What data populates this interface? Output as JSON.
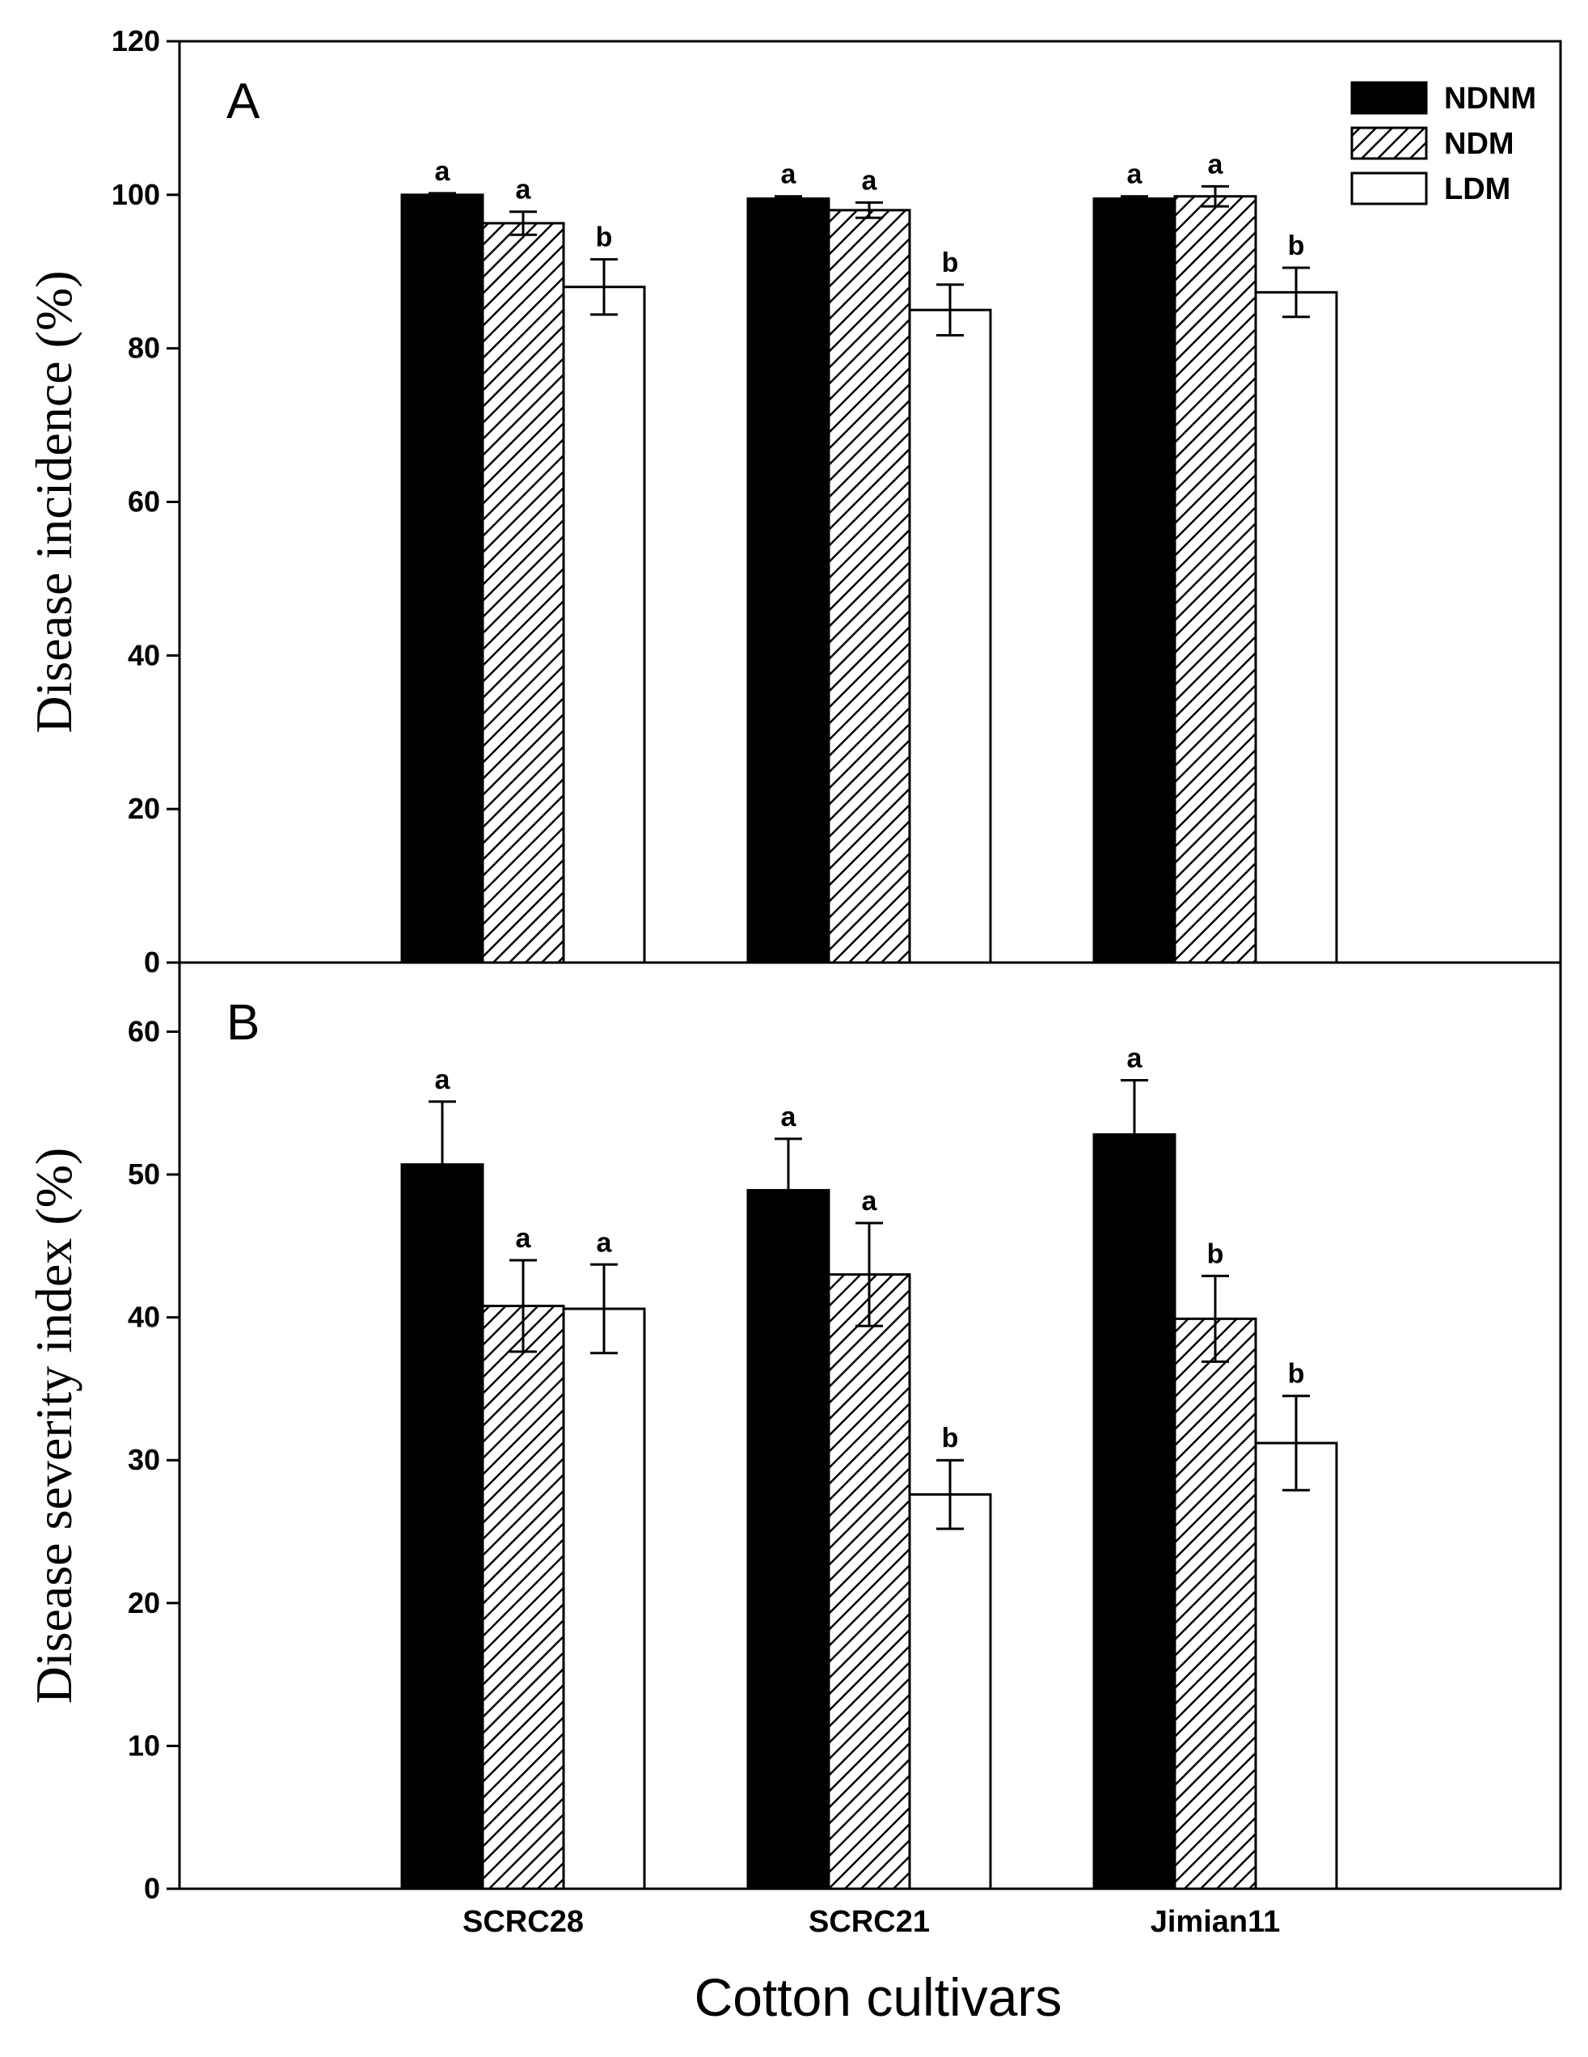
{
  "legend": [
    {
      "name": "NDNM",
      "style": "solid",
      "color": "#000000"
    },
    {
      "name": "NDM",
      "style": "hatch",
      "color": "#000000"
    },
    {
      "name": "LDM",
      "style": "open",
      "color": "#ffffff"
    }
  ],
  "xlabel": "Cotton cultivars",
  "chart_data": [
    {
      "panel": "A",
      "type": "bar",
      "ylabel": "Disease incidence (%)",
      "ylim": [
        0,
        120
      ],
      "yticks": [
        0,
        20,
        40,
        60,
        80,
        100,
        120
      ],
      "categories": [
        "SCRC28",
        "SCRC21",
        "Jimian11"
      ],
      "series": [
        {
          "name": "NDNM",
          "values": [
            100,
            99.5,
            99.5
          ],
          "errors": [
            0.2,
            0.3,
            0.3
          ],
          "letters": [
            "a",
            "a",
            "a"
          ]
        },
        {
          "name": "NDM",
          "values": [
            96.3,
            98,
            99.8
          ],
          "errors": [
            1.5,
            1,
            1.3
          ],
          "letters": [
            "a",
            "a",
            "a"
          ]
        },
        {
          "name": "LDM",
          "values": [
            88,
            85,
            87.3
          ],
          "errors": [
            3.6,
            3.3,
            3.2
          ],
          "letters": [
            "b",
            "b",
            "b"
          ]
        }
      ]
    },
    {
      "panel": "B",
      "type": "bar",
      "ylabel": "Disease severity index (%)",
      "ylim": [
        0,
        65
      ],
      "yticks": [
        0,
        10,
        20,
        30,
        40,
        50,
        60
      ],
      "categories": [
        "SCRC28",
        "SCRC21",
        "Jimian11"
      ],
      "series": [
        {
          "name": "NDNM",
          "values": [
            50.7,
            48.9,
            52.8
          ],
          "errors": [
            4.4,
            3.6,
            3.8
          ],
          "letters": [
            "a",
            "a",
            "a"
          ]
        },
        {
          "name": "NDM",
          "values": [
            40.8,
            43,
            39.9
          ],
          "errors": [
            3.2,
            3.6,
            3
          ],
          "letters": [
            "a",
            "a",
            "b"
          ]
        },
        {
          "name": "LDM",
          "values": [
            40.6,
            27.6,
            31.2
          ],
          "errors": [
            3.1,
            2.4,
            3.3
          ],
          "letters": [
            "a",
            "b",
            "b"
          ]
        }
      ]
    }
  ]
}
